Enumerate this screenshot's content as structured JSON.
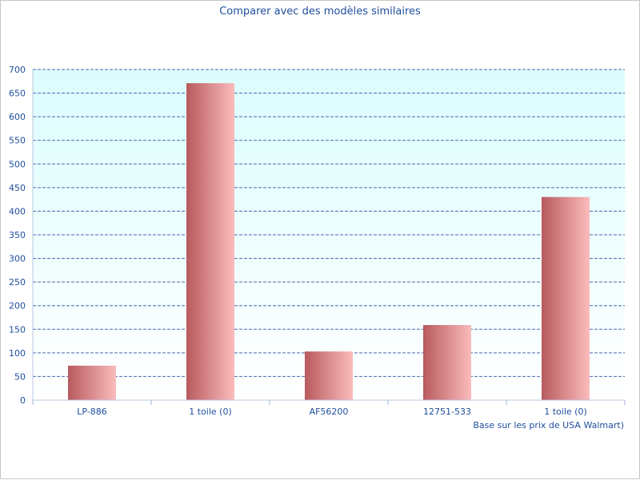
{
  "chart_data": {
    "type": "bar",
    "title": "Comparer avec des modèles similaires",
    "footnote": "Base sur les prix de USA Walmart)",
    "categories": [
      "LP-886",
      "1 toile (0)",
      "AF56200",
      "12751-533",
      "1 toile (0)"
    ],
    "values": [
      73,
      671,
      103,
      159,
      430
    ],
    "ylim": [
      0,
      700
    ],
    "yticks": [
      0,
      50,
      100,
      150,
      200,
      250,
      300,
      350,
      400,
      450,
      500,
      550,
      600,
      650,
      700
    ],
    "grid": true,
    "colors": {
      "bar_dark": "#b85a5e",
      "bar_light": "#fbbcbc",
      "grid": "#2e4f9f",
      "plot_top": "#dcfdfd",
      "plot_bottom": "#ffffff",
      "text": "#1f4e9e"
    }
  }
}
